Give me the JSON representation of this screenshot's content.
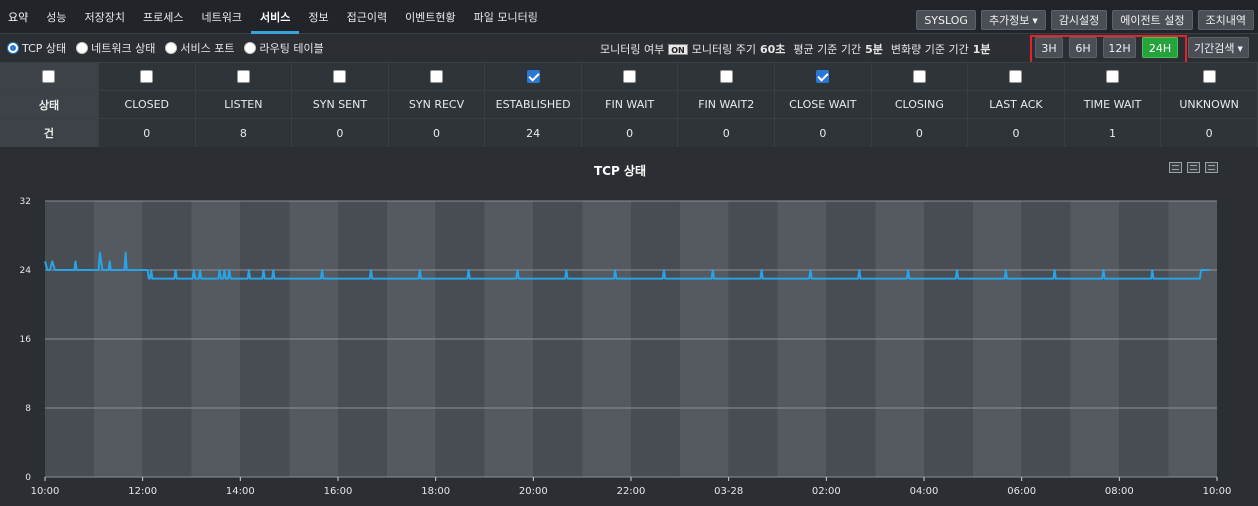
{
  "nav": {
    "tabs": [
      "요약",
      "성능",
      "저장장치",
      "프로세스",
      "네트워크",
      "서비스",
      "정보",
      "접근이력",
      "이벤트현황",
      "파일 모니터링"
    ],
    "active_tab": "서비스",
    "actions": {
      "syslog": "SYSLOG",
      "extra_info": "추가정보",
      "watch_settings": "감시설정",
      "agent_settings": "에이전트 설정",
      "action_history": "조치내역"
    }
  },
  "subbar": {
    "radios": [
      {
        "label": "TCP 상태",
        "selected": true
      },
      {
        "label": "네트워크 상태",
        "selected": false
      },
      {
        "label": "서비스 포트",
        "selected": false
      },
      {
        "label": "라우팅 테이블",
        "selected": false
      }
    ],
    "monitoring_label": "모니터링 여부",
    "monitoring_state": "ON",
    "cycle_label": "모니터링 주기",
    "cycle_value": "60초",
    "avg_label": "평균 기준 기간",
    "avg_value": "5분",
    "change_label": "변화량 기준 기간",
    "change_value": "1분",
    "ranges": [
      "3H",
      "6H",
      "12H",
      "24H"
    ],
    "active_range": "24H",
    "period_search": "기간검색"
  },
  "tcp_table": {
    "row_header_state": "상태",
    "row_header_count": "건",
    "columns": [
      {
        "state": "CLOSED",
        "count": "0",
        "checked": false
      },
      {
        "state": "LISTEN",
        "count": "8",
        "checked": false
      },
      {
        "state": "SYN SENT",
        "count": "0",
        "checked": false
      },
      {
        "state": "SYN RECV",
        "count": "0",
        "checked": false
      },
      {
        "state": "ESTABLISHED",
        "count": "24",
        "checked": true
      },
      {
        "state": "FIN WAIT",
        "count": "0",
        "checked": false
      },
      {
        "state": "FIN WAIT2",
        "count": "0",
        "checked": false
      },
      {
        "state": "CLOSE WAIT",
        "count": "0",
        "checked": true
      },
      {
        "state": "CLOSING",
        "count": "0",
        "checked": false
      },
      {
        "state": "LAST ACK",
        "count": "0",
        "checked": false
      },
      {
        "state": "TIME WAIT",
        "count": "1",
        "checked": false
      },
      {
        "state": "UNKNOWN",
        "count": "0",
        "checked": false
      }
    ]
  },
  "chart_data": {
    "type": "line",
    "title": "TCP 상태",
    "ylim": [
      0,
      32
    ],
    "yticks": [
      0,
      8,
      16,
      24,
      32
    ],
    "x_tick_labels": [
      "10:00",
      "12:00",
      "14:00",
      "16:00",
      "18:00",
      "20:00",
      "22:00",
      "03-28",
      "02:00",
      "04:00",
      "06:00",
      "08:00",
      "10:00"
    ],
    "grid": true,
    "line_color": "#29a3e8",
    "series": [
      {
        "values": [
          [
            0.0,
            25
          ],
          [
            0.1,
            24
          ],
          [
            0.2,
            24
          ],
          [
            0.3,
            25
          ],
          [
            0.4,
            24
          ],
          [
            1.2,
            24
          ],
          [
            1.25,
            25
          ],
          [
            1.3,
            24
          ],
          [
            2.2,
            24
          ],
          [
            2.25,
            26
          ],
          [
            2.3,
            25
          ],
          [
            2.35,
            24
          ],
          [
            2.6,
            24
          ],
          [
            2.65,
            25
          ],
          [
            2.7,
            24
          ],
          [
            3.25,
            24
          ],
          [
            3.3,
            26
          ],
          [
            3.35,
            24
          ],
          [
            4.0,
            24
          ],
          [
            4.2,
            24
          ],
          [
            4.25,
            23
          ],
          [
            4.3,
            23
          ],
          [
            4.35,
            24
          ],
          [
            4.4,
            23
          ],
          [
            5.3,
            23
          ],
          [
            5.35,
            24
          ],
          [
            5.4,
            23
          ],
          [
            6.05,
            23
          ],
          [
            6.1,
            24
          ],
          [
            6.15,
            23
          ],
          [
            6.3,
            23
          ],
          [
            6.35,
            24
          ],
          [
            6.4,
            23
          ],
          [
            7.1,
            23
          ],
          [
            7.15,
            24
          ],
          [
            7.2,
            23
          ],
          [
            7.3,
            23
          ],
          [
            7.35,
            24
          ],
          [
            7.4,
            23
          ],
          [
            7.5,
            23
          ],
          [
            7.55,
            24
          ],
          [
            7.6,
            23
          ],
          [
            8.3,
            23
          ],
          [
            8.35,
            24
          ],
          [
            8.4,
            23
          ],
          [
            8.9,
            23
          ],
          [
            8.95,
            24
          ],
          [
            9.0,
            23
          ],
          [
            9.3,
            23
          ],
          [
            9.35,
            24
          ],
          [
            9.4,
            23
          ],
          [
            11.3,
            23
          ],
          [
            11.35,
            24
          ],
          [
            11.4,
            23
          ],
          [
            13.3,
            23
          ],
          [
            13.35,
            24
          ],
          [
            13.4,
            23
          ],
          [
            15.3,
            23
          ],
          [
            15.35,
            24
          ],
          [
            15.4,
            23
          ],
          [
            17.3,
            23
          ],
          [
            17.35,
            24
          ],
          [
            17.4,
            23
          ],
          [
            19.3,
            23
          ],
          [
            19.35,
            24
          ],
          [
            19.4,
            23
          ],
          [
            21.3,
            23
          ],
          [
            21.35,
            24
          ],
          [
            21.4,
            23
          ],
          [
            23.3,
            23
          ],
          [
            23.35,
            24
          ],
          [
            23.4,
            23
          ],
          [
            25.3,
            23
          ],
          [
            25.35,
            24
          ],
          [
            25.4,
            23
          ],
          [
            27.3,
            23
          ],
          [
            27.35,
            24
          ],
          [
            27.4,
            23
          ],
          [
            29.3,
            23
          ],
          [
            29.35,
            24
          ],
          [
            29.4,
            23
          ],
          [
            31.3,
            23
          ],
          [
            31.35,
            24
          ],
          [
            31.4,
            23
          ],
          [
            33.3,
            23
          ],
          [
            33.35,
            24
          ],
          [
            33.4,
            23
          ],
          [
            35.3,
            23
          ],
          [
            35.35,
            24
          ],
          [
            35.4,
            23
          ],
          [
            37.3,
            23
          ],
          [
            37.35,
            24
          ],
          [
            37.4,
            23
          ],
          [
            39.3,
            23
          ],
          [
            39.35,
            24
          ],
          [
            39.4,
            23
          ],
          [
            41.3,
            23
          ],
          [
            41.35,
            24
          ],
          [
            41.4,
            23
          ],
          [
            43.3,
            23
          ],
          [
            43.35,
            24
          ],
          [
            43.4,
            23
          ],
          [
            45.3,
            23
          ],
          [
            45.35,
            24
          ],
          [
            45.4,
            23
          ],
          [
            47.3,
            23
          ],
          [
            47.35,
            24
          ],
          [
            47.7,
            24
          ]
        ]
      }
    ]
  }
}
